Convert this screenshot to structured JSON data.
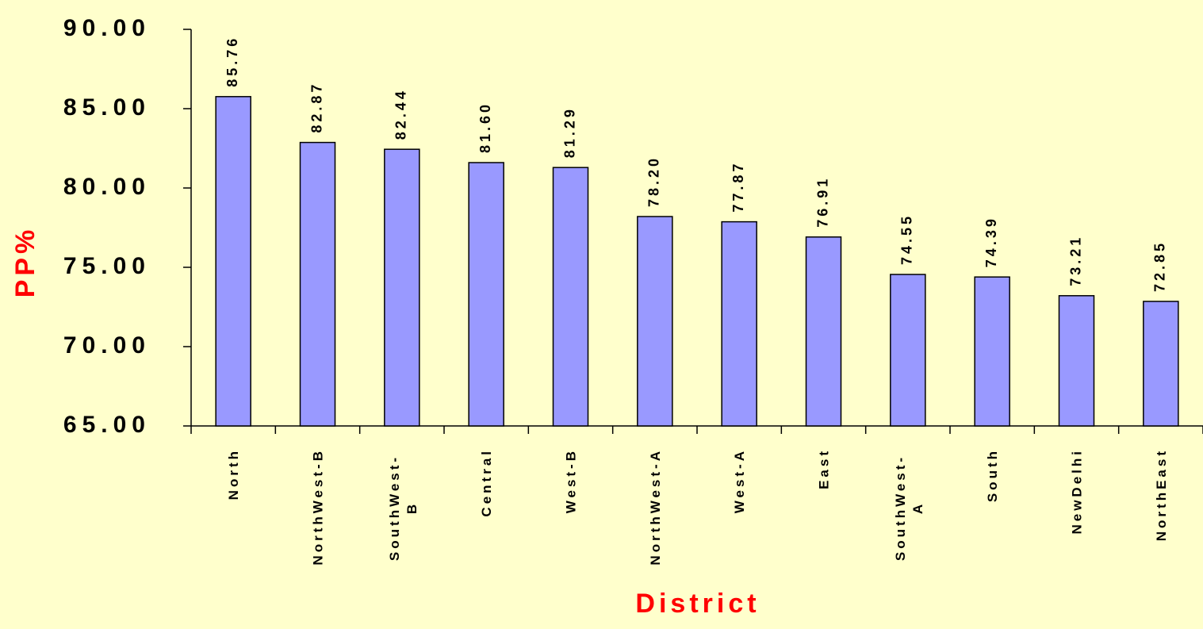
{
  "chart_data": {
    "type": "bar",
    "x_label": "District",
    "y_label": "PP%",
    "categories": [
      "North",
      "NorthWest-B",
      "SouthWest-B",
      "Central",
      "West-B",
      "NorthWest-A",
      "West-A",
      "East",
      "SouthWest-A",
      "South",
      "NewDelhi",
      "NorthEast"
    ],
    "values": [
      85.76,
      82.87,
      82.44,
      81.6,
      81.29,
      78.2,
      77.87,
      76.91,
      74.55,
      74.39,
      73.21,
      72.85
    ],
    "value_labels": [
      "85.76",
      "82.87",
      "82.44",
      "81.60",
      "81.29",
      "78.20",
      "77.87",
      "76.91",
      "74.55",
      "74.39",
      "73.21",
      "72.85"
    ],
    "color": "#9999ff",
    "ylim": [
      65,
      90
    ],
    "yticks": [
      {
        "value": 65,
        "label": "65.00"
      },
      {
        "value": 70,
        "label": "70.00"
      },
      {
        "value": 75,
        "label": "75.00"
      },
      {
        "value": 80,
        "label": "80.00"
      },
      {
        "value": 85,
        "label": "85.00"
      },
      {
        "value": 90,
        "label": "90.00"
      }
    ],
    "grid": false
  }
}
